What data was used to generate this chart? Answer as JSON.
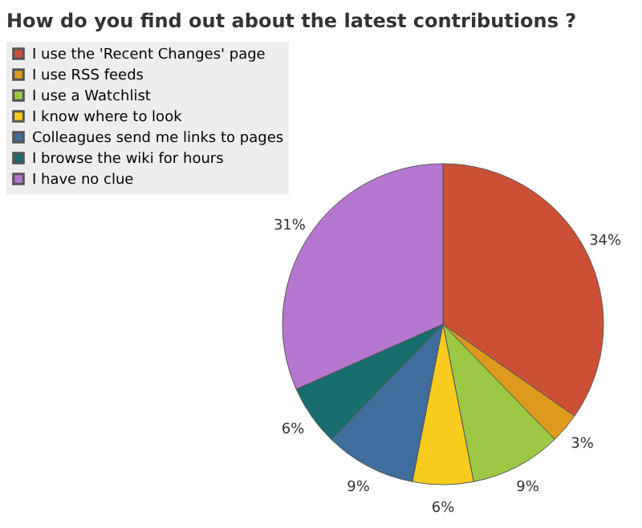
{
  "chart_data": {
    "type": "pie",
    "title": "How do you find out about the latest contributions ?",
    "categories": [
      "I use the 'Recent Changes' page",
      "I use RSS feeds",
      "I use a Watchlist",
      "I know where to look",
      "Colleagues send me links to pages",
      "I browse the wiki for hours",
      "I have no clue"
    ],
    "values": [
      34,
      3,
      9,
      6,
      9,
      6,
      31
    ],
    "value_labels": [
      "34%",
      "3%",
      "9%",
      "6%",
      "9%",
      "6%",
      "31%"
    ],
    "colors": [
      "#cc5035",
      "#dd9a1c",
      "#9dc843",
      "#f8cc1c",
      "#3f6d9c",
      "#176e6c",
      "#b577d0"
    ],
    "legend": "top left"
  }
}
